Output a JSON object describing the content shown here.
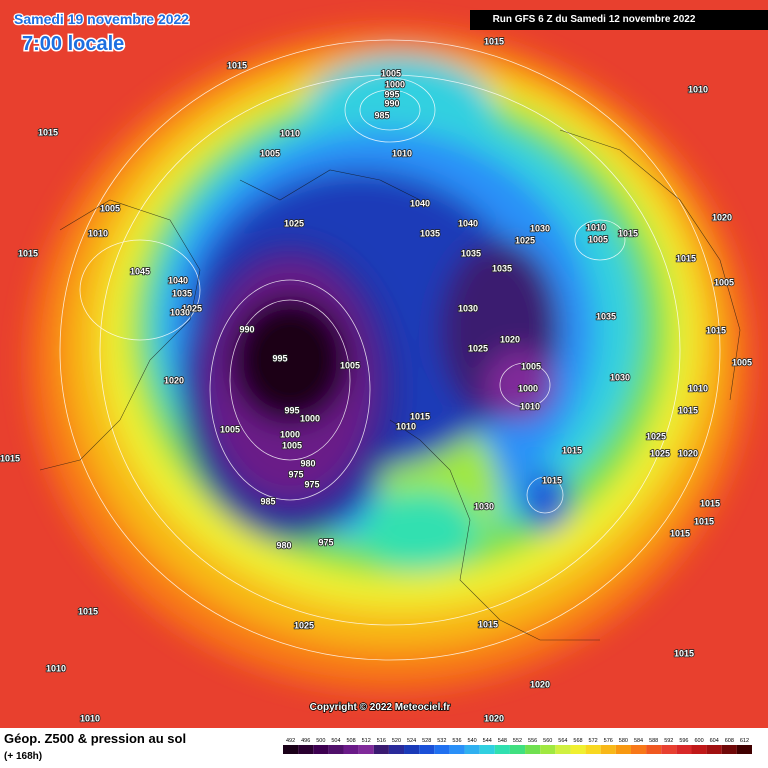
{
  "header": {
    "date": "Samedi 19 novembre 2022",
    "time": "7:00 locale",
    "run": "Run GFS 6 Z du Samedi 12 novembre 2022"
  },
  "footer": {
    "title": "Géop. Z500 & pression au sol",
    "step": "(+ 168h)",
    "copyright": "Copyright © 2022 Meteociel.fr"
  },
  "isobar_labels": [
    1015,
    1015,
    1010,
    1005,
    1000,
    995,
    990,
    985,
    1015,
    1010,
    1005,
    1010,
    1040,
    1005,
    1010,
    1025,
    1040,
    1035,
    1030,
    1010,
    1005,
    1015,
    1025,
    1020,
    1015,
    1035,
    1015,
    1045,
    1035,
    1040,
    1005,
    1035,
    1025,
    1030,
    1030,
    1035,
    1015,
    990,
    1020,
    1025,
    995,
    1005,
    1005,
    1005,
    1020,
    1030,
    1000,
    1010,
    1010,
    995,
    1000,
    1015,
    1010,
    1005,
    1000,
    1025,
    1015,
    1005,
    1020,
    1025,
    980,
    975,
    975,
    1015,
    1015,
    1015,
    985,
    1030,
    1015,
    1015,
    1015,
    980,
    975,
    1015,
    1025,
    1015,
    1010,
    1015,
    1020,
    1010,
    1020
  ],
  "colorbar": {
    "values": [
      492,
      496,
      500,
      504,
      508,
      512,
      516,
      520,
      524,
      528,
      532,
      536,
      540,
      544,
      548,
      552,
      556,
      560,
      564,
      568,
      572,
      576,
      580,
      584,
      588,
      592,
      596,
      600,
      604,
      608,
      612
    ],
    "colors": [
      "#1a0018",
      "#2a0030",
      "#3d0050",
      "#50106a",
      "#6a1a88",
      "#802a9a",
      "#3a1a70",
      "#2a2a9a",
      "#1a3ab8",
      "#1a50d8",
      "#2070f0",
      "#2a90f8",
      "#30b0f0",
      "#30d0e0",
      "#30e0b0",
      "#40e080",
      "#70e050",
      "#a0e840",
      "#d0f040",
      "#f0f030",
      "#f8d820",
      "#f8b818",
      "#f89810",
      "#f87818",
      "#f05820",
      "#e84030",
      "#d82828",
      "#c01818",
      "#a01010",
      "#700808",
      "#400000"
    ]
  }
}
